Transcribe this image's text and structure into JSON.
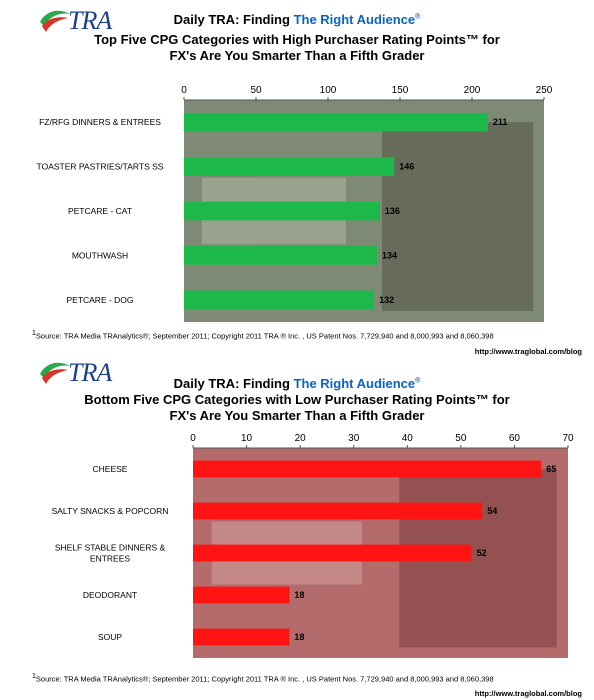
{
  "charts": [
    {
      "id": "top",
      "header_prefix": "Daily TRA: Finding ",
      "header_accent": "The Right Audience",
      "header_mark": "®",
      "title_line1": "Top Five CPG Categories with High Purchaser Rating Points™ for",
      "title_line2": "FX's Are You Smarter Than a Fifth Grader",
      "source": "Source: TRA Media TRAnalytics®; September 2011; Copyright 2011 TRA ® Inc. , US Patent Nos. 7,729,940 and 8,000,993 and 8,060,398",
      "source_mark": "1",
      "url": "http://www.traglobal.com/blog",
      "logo_text": "TRA"
    },
    {
      "id": "bottom",
      "header_prefix": "Daily TRA: Finding ",
      "header_accent": "The Right Audience",
      "header_mark": "®",
      "title_line1": "Bottom Five CPG Categories with Low Purchaser Rating Points™ for",
      "title_line2": "FX's Are You Smarter Than a Fifth Grader",
      "source": "Source: TRA Media TRAnalytics®; September 2011; Copyright 2011 TRA ® Inc. , US Patent Nos. 7,729,940 and 8,000,993 and 8,060,398",
      "source_mark": "1",
      "url": "http://www.traglobal.com/blog",
      "logo_text": "TRA"
    }
  ],
  "chart_data": [
    {
      "type": "bar",
      "orientation": "horizontal",
      "title": "Top Five CPG Categories with High Purchaser Rating Points™ for FX's Are You Smarter Than a Fifth Grader",
      "categories": [
        "FZ/RFG DINNERS & ENTREES",
        "TOASTER PASTRIES/TARTS SS",
        "PETCARE - CAT",
        "MOUTHWASH",
        "PETCARE - DOG"
      ],
      "values": [
        211,
        146,
        136,
        134,
        132
      ],
      "xlim": [
        0,
        250
      ],
      "ticks": [
        0,
        50,
        100,
        150,
        200,
        250
      ],
      "axis_position": "top",
      "bar_color": "#1db84a",
      "background_image": "Are You Smarter Than a 5th Grader show photo"
    },
    {
      "type": "bar",
      "orientation": "horizontal",
      "title": "Bottom Five CPG Categories with Low Purchaser Rating Points™ for FX's Are You Smarter Than a Fifth Grader",
      "categories": [
        "CHEESE",
        "SALTY SNACKS & POPCORN",
        "SHELF STABLE DINNERS & ENTREES",
        "DEODORANT",
        "SOUP"
      ],
      "values": [
        65,
        54,
        52,
        18,
        18
      ],
      "xlim": [
        0,
        70
      ],
      "ticks": [
        0,
        10,
        20,
        30,
        40,
        50,
        60,
        70
      ],
      "axis_position": "top",
      "bar_color": "#ff1414",
      "background_image": "Are You Smarter Than a 5th Grader show photo"
    }
  ]
}
